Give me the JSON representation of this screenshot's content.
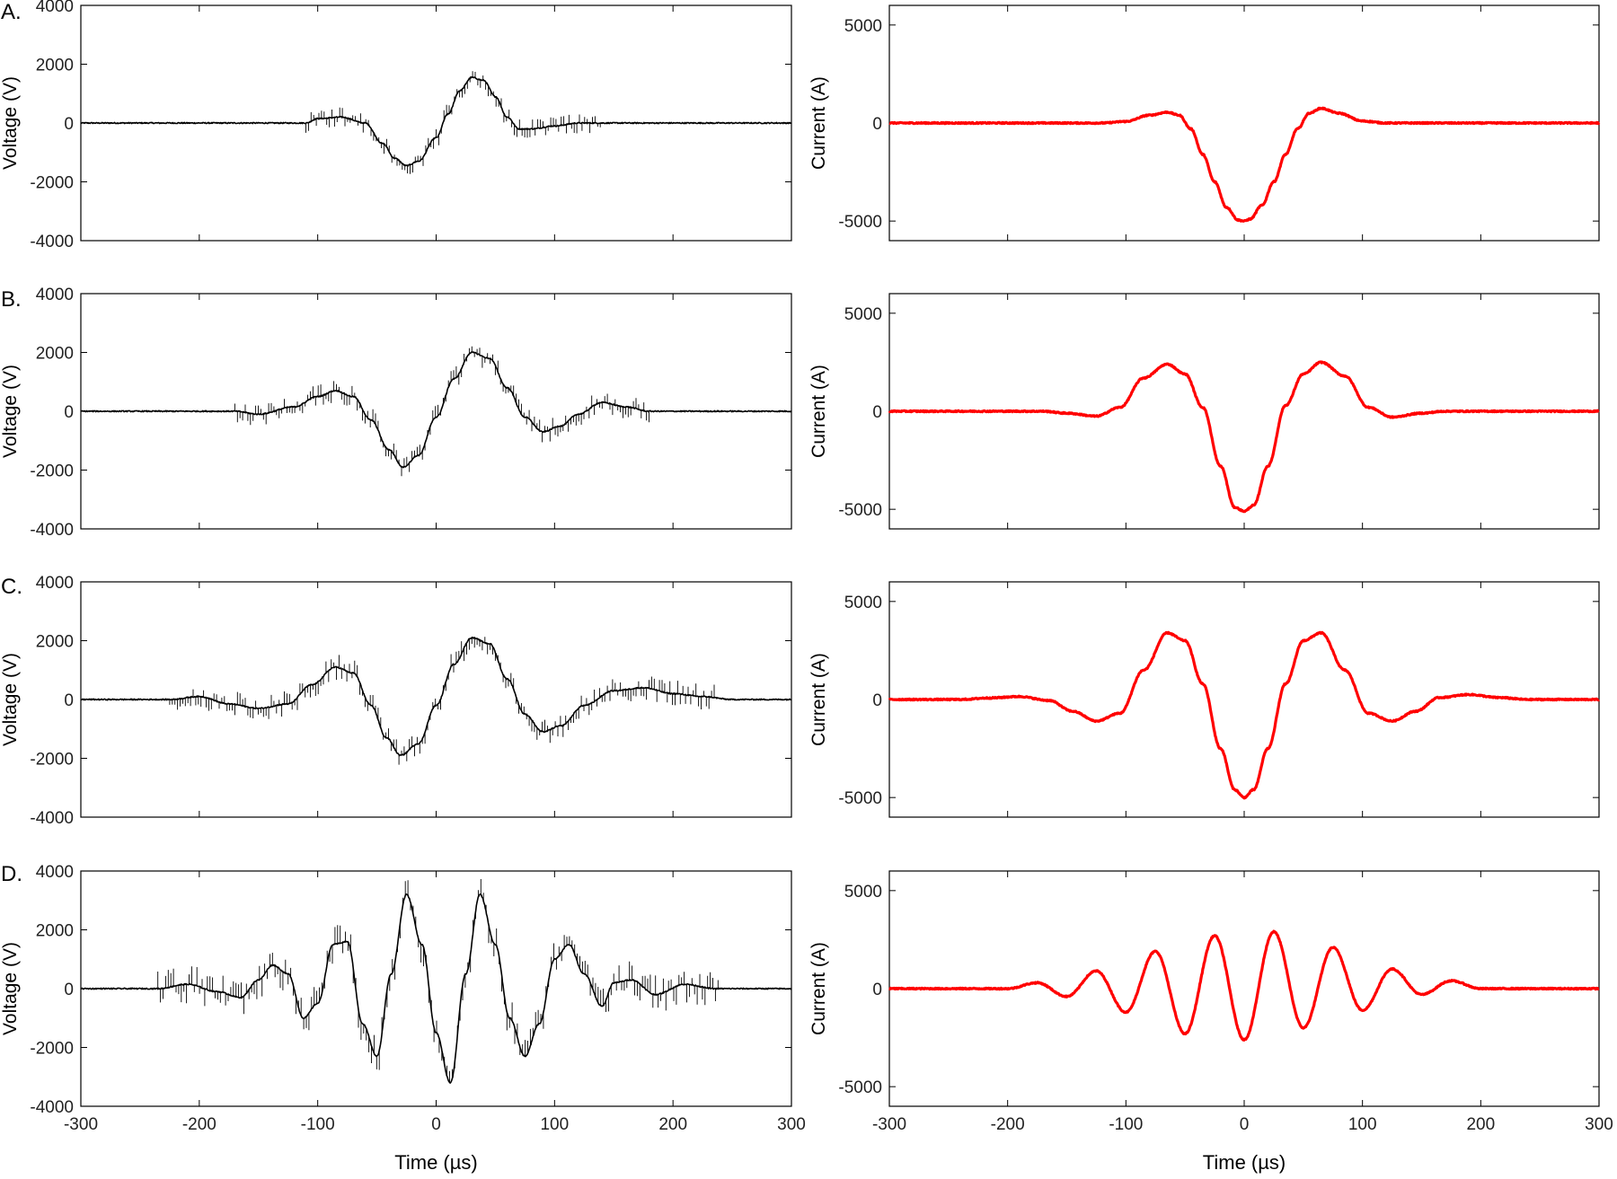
{
  "figure": {
    "panel_labels": [
      "A.",
      "B.",
      "C.",
      "D."
    ]
  },
  "chart_data": [
    {
      "id": "A-voltage",
      "type": "line",
      "panel": "A.",
      "ylabel": "Voltage (V)",
      "xlabel": "",
      "xlim": [
        -300,
        300
      ],
      "ylim": [
        -4000,
        4000
      ],
      "xticks": [
        -300,
        -200,
        -100,
        0,
        100,
        200,
        300
      ],
      "xtick_labels_visible": false,
      "yticks": [
        -4000,
        -2000,
        0,
        2000,
        4000
      ],
      "grid": false,
      "color": "#000000",
      "series": [
        {
          "x": [
            -300,
            -110,
            -100,
            -80,
            -60,
            -45,
            -35,
            -25,
            -15,
            0,
            10,
            20,
            30,
            40,
            50,
            60,
            70,
            80,
            100,
            120,
            140,
            300
          ],
          "y": [
            0,
            0,
            150,
            200,
            0,
            -700,
            -1200,
            -1450,
            -1300,
            -500,
            300,
            1100,
            1550,
            1450,
            900,
            200,
            -200,
            -200,
            -100,
            0,
            0,
            0
          ],
          "noise_start": -110,
          "noise_end": 140,
          "noise_amp": 350
        }
      ]
    },
    {
      "id": "A-current",
      "type": "line",
      "panel": "A.",
      "ylabel": "Current (A)",
      "xlabel": "",
      "xlim": [
        -300,
        300
      ],
      "ylim": [
        -6000,
        6000
      ],
      "xticks": [
        -300,
        -200,
        -100,
        0,
        100,
        200,
        300
      ],
      "xtick_labels_visible": false,
      "yticks": [
        -5000,
        0,
        5000
      ],
      "grid": false,
      "color": "#ff0000",
      "series": [
        {
          "x": [
            -300,
            -120,
            -100,
            -80,
            -65,
            -55,
            -45,
            -35,
            -25,
            -15,
            -5,
            0,
            5,
            15,
            25,
            35,
            45,
            55,
            65,
            80,
            100,
            120,
            300
          ],
          "y": [
            0,
            0,
            80,
            400,
            550,
            400,
            -300,
            -1600,
            -3000,
            -4300,
            -4950,
            -5000,
            -4900,
            -4200,
            -3000,
            -1600,
            -300,
            500,
            750,
            500,
            100,
            0,
            0
          ]
        }
      ]
    },
    {
      "id": "B-voltage",
      "type": "line",
      "panel": "B.",
      "ylabel": "Voltage (V)",
      "xlabel": "",
      "xlim": [
        -300,
        300
      ],
      "ylim": [
        -4000,
        4000
      ],
      "xticks": [
        -300,
        -200,
        -100,
        0,
        100,
        200,
        300
      ],
      "xtick_labels_visible": false,
      "yticks": [
        -4000,
        -2000,
        0,
        2000,
        4000
      ],
      "grid": false,
      "color": "#000000",
      "series": [
        {
          "x": [
            -300,
            -170,
            -150,
            -120,
            -100,
            -85,
            -70,
            -55,
            -40,
            -28,
            -15,
            0,
            15,
            30,
            45,
            60,
            75,
            90,
            105,
            120,
            140,
            160,
            180,
            300
          ],
          "y": [
            0,
            0,
            -100,
            150,
            500,
            700,
            500,
            -300,
            -1300,
            -1900,
            -1500,
            -200,
            1100,
            2000,
            1800,
            800,
            -200,
            -700,
            -500,
            -100,
            300,
            150,
            0,
            0
          ],
          "noise_start": -170,
          "noise_end": 180,
          "noise_amp": 400
        }
      ]
    },
    {
      "id": "B-current",
      "type": "line",
      "panel": "B.",
      "ylabel": "Current (A)",
      "xlabel": "",
      "xlim": [
        -300,
        300
      ],
      "ylim": [
        -6000,
        6000
      ],
      "xticks": [
        -300,
        -200,
        -100,
        0,
        100,
        200,
        300
      ],
      "xtick_labels_visible": false,
      "yticks": [
        -5000,
        0,
        5000
      ],
      "grid": false,
      "color": "#ff0000",
      "series": [
        {
          "x": [
            -300,
            -170,
            -150,
            -125,
            -105,
            -85,
            -65,
            -50,
            -35,
            -20,
            -8,
            0,
            8,
            20,
            35,
            50,
            65,
            85,
            105,
            125,
            150,
            170,
            300
          ],
          "y": [
            0,
            0,
            -100,
            -250,
            200,
            1700,
            2400,
            1900,
            200,
            -2800,
            -4900,
            -5100,
            -4800,
            -2800,
            300,
            1900,
            2500,
            1800,
            200,
            -300,
            -100,
            0,
            0
          ]
        }
      ]
    },
    {
      "id": "C-voltage",
      "type": "line",
      "panel": "C.",
      "ylabel": "Voltage (V)",
      "xlabel": "",
      "xlim": [
        -300,
        300
      ],
      "ylim": [
        -4000,
        4000
      ],
      "xticks": [
        -300,
        -200,
        -100,
        0,
        100,
        200,
        300
      ],
      "xtick_labels_visible": false,
      "yticks": [
        -4000,
        -2000,
        0,
        2000,
        4000
      ],
      "grid": false,
      "color": "#000000",
      "series": [
        {
          "x": [
            -300,
            -225,
            -200,
            -175,
            -150,
            -125,
            -105,
            -85,
            -70,
            -55,
            -42,
            -30,
            -15,
            0,
            15,
            30,
            45,
            60,
            75,
            90,
            105,
            125,
            150,
            175,
            200,
            225,
            250,
            300
          ],
          "y": [
            0,
            0,
            100,
            -150,
            -300,
            -150,
            500,
            1100,
            900,
            -200,
            -1300,
            -1900,
            -1500,
            -200,
            1200,
            2100,
            1900,
            700,
            -500,
            -1100,
            -900,
            -200,
            300,
            400,
            200,
            100,
            0,
            0
          ],
          "noise_start": -225,
          "noise_end": 235,
          "noise_amp": 450
        }
      ]
    },
    {
      "id": "C-current",
      "type": "line",
      "panel": "C.",
      "ylabel": "Current (A)",
      "xlabel": "",
      "xlim": [
        -300,
        300
      ],
      "ylim": [
        -6000,
        6000
      ],
      "xticks": [
        -300,
        -200,
        -100,
        0,
        100,
        200,
        300
      ],
      "xtick_labels_visible": false,
      "yticks": [
        -5000,
        0,
        5000
      ],
      "grid": false,
      "color": "#ff0000",
      "series": [
        {
          "x": [
            -300,
            -240,
            -215,
            -190,
            -165,
            -145,
            -125,
            -105,
            -85,
            -65,
            -50,
            -35,
            -20,
            -8,
            0,
            8,
            20,
            35,
            50,
            65,
            85,
            105,
            125,
            145,
            165,
            190,
            215,
            240,
            300
          ],
          "y": [
            0,
            0,
            80,
            150,
            -50,
            -600,
            -1100,
            -700,
            1500,
            3400,
            3000,
            800,
            -2500,
            -4600,
            -5000,
            -4600,
            -2500,
            800,
            3000,
            3400,
            1500,
            -700,
            -1100,
            -600,
            100,
            250,
            100,
            0,
            0
          ]
        }
      ]
    },
    {
      "id": "D-voltage",
      "type": "line",
      "panel": "D.",
      "ylabel": "Voltage (V)",
      "xlabel": "Time (µs)",
      "xlim": [
        -300,
        300
      ],
      "ylim": [
        -4000,
        4000
      ],
      "xticks": [
        -300,
        -200,
        -100,
        0,
        100,
        200,
        300
      ],
      "xtick_labels_visible": true,
      "yticks": [
        -4000,
        -2000,
        0,
        2000,
        4000
      ],
      "grid": false,
      "color": "#000000",
      "series": [
        {
          "x": [
            -300,
            -235,
            -210,
            -185,
            -165,
            -150,
            -138,
            -125,
            -112,
            -100,
            -87,
            -75,
            -62,
            -50,
            -38,
            -25,
            -12,
            0,
            12,
            25,
            37,
            50,
            62,
            75,
            87,
            100,
            112,
            125,
            140,
            150,
            165,
            185,
            210,
            235,
            300
          ],
          "y": [
            0,
            0,
            150,
            -100,
            -300,
            300,
            800,
            500,
            -1000,
            -500,
            1500,
            1600,
            -1200,
            -2300,
            500,
            3200,
            1500,
            -1500,
            -3200,
            500,
            3200,
            1500,
            -1000,
            -2300,
            -1200,
            1000,
            1500,
            500,
            -600,
            200,
            300,
            -200,
            150,
            0,
            0
          ],
          "noise_start": -235,
          "noise_end": 240,
          "noise_amp": 650
        }
      ]
    },
    {
      "id": "D-current",
      "type": "line",
      "panel": "D.",
      "ylabel": "Current (A)",
      "xlabel": "Time (µs)",
      "xlim": [
        -300,
        300
      ],
      "ylim": [
        -6000,
        6000
      ],
      "xticks": [
        -300,
        -200,
        -100,
        0,
        100,
        200,
        300
      ],
      "xtick_labels_visible": true,
      "yticks": [
        -5000,
        0,
        5000
      ],
      "grid": false,
      "color": "#ff0000",
      "series": [
        {
          "x": [
            -300,
            -200,
            -175,
            -150,
            -125,
            -100,
            -75,
            -50,
            -25,
            0,
            25,
            50,
            75,
            100,
            125,
            150,
            175,
            200,
            300
          ],
          "y": [
            0,
            0,
            300,
            -400,
            900,
            -1200,
            1900,
            -2300,
            2700,
            -2600,
            2900,
            -2000,
            2100,
            -1100,
            1000,
            -300,
            400,
            0,
            0
          ]
        }
      ]
    }
  ]
}
